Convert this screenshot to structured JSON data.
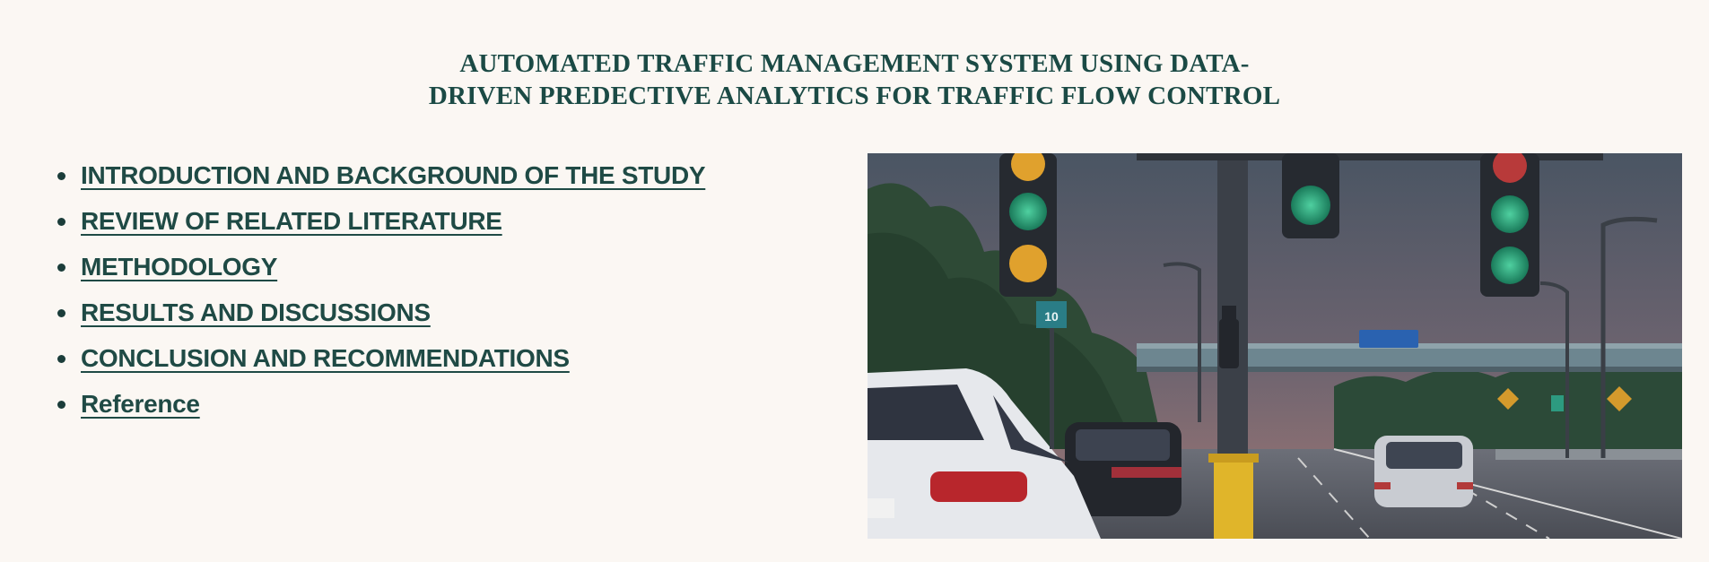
{
  "page": {
    "title": "AUTOMATED TRAFFIC MANAGEMENT SYSTEM USING DATA-DRIVEN PREDECTIVE ANALYTICS FOR TRAFFIC FLOW CONTROL"
  },
  "nav": {
    "items": [
      {
        "label": "INTRODUCTION AND BACKGROUND OF THE STUDY"
      },
      {
        "label": "REVIEW OF RELATED LITERATURE"
      },
      {
        "label": "METHODOLOGY"
      },
      {
        "label": "RESULTS AND DISCUSSIONS"
      },
      {
        "label": "CONCLUSION AND RECOMMENDATIONS"
      },
      {
        "label": "Reference"
      }
    ]
  },
  "image": {
    "sign_text": "10"
  },
  "colors": {
    "background": "#fbf7f3",
    "text": "#1f4a45"
  }
}
